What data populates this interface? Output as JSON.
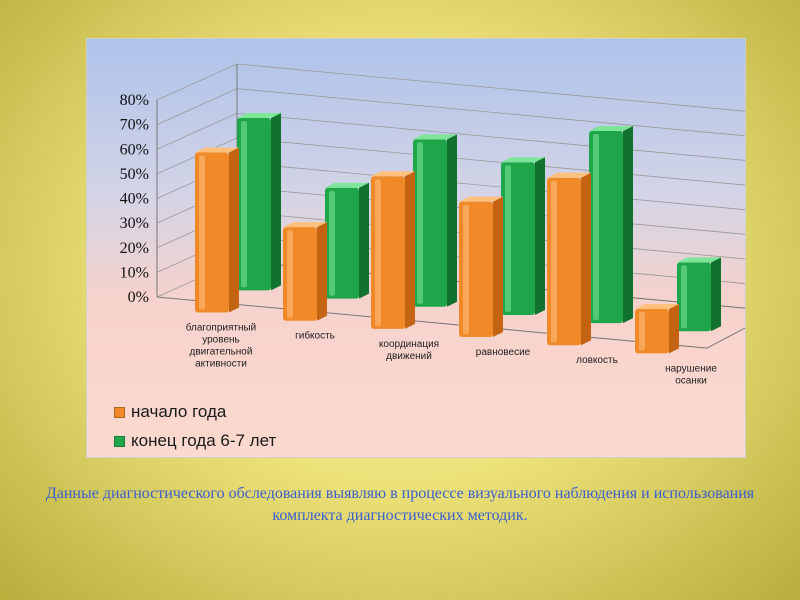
{
  "chart_data": {
    "type": "bar",
    "categories": [
      [
        "благоприятный",
        "уровень",
        "двигательной",
        "активности"
      ],
      [
        "гибкость"
      ],
      [
        "координация",
        "движений"
      ],
      [
        "равновесие"
      ],
      [
        "ловкость"
      ],
      [
        "нарушение",
        "осанки"
      ]
    ],
    "series": [
      {
        "name": "начало года",
        "values": [
          0.65,
          0.38,
          0.62,
          0.55,
          0.68,
          0.18
        ]
      },
      {
        "name": "конец года 6-7 лет",
        "values": [
          0.7,
          0.45,
          0.68,
          0.62,
          0.78,
          0.28
        ]
      }
    ],
    "y_ticks": [
      "0%",
      "10%",
      "20%",
      "30%",
      "40%",
      "50%",
      "60%",
      "70%",
      "80%"
    ],
    "ylim": [
      0,
      0.8
    ],
    "grid": true,
    "legend_position": "bottom-left"
  },
  "colors": {
    "series_0": "#f08a28",
    "series_0_dark": "#c46312",
    "series_0_light": "#ffc07e",
    "series_1": "#1fa64a",
    "series_1_dark": "#11722e",
    "series_1_light": "#7ee59a"
  },
  "caption": "Данные диагностического обследования выявляю в процессе  визуального наблюдения и использования комплекта диагностических методик."
}
